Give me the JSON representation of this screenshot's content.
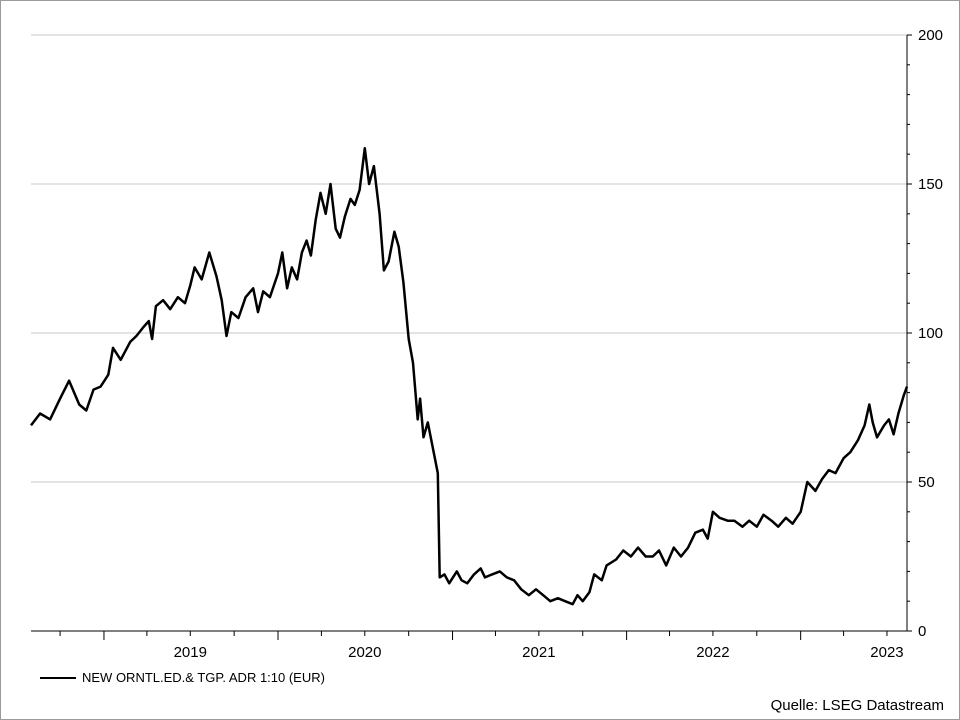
{
  "chart_data": {
    "type": "line",
    "source": "Quelle: LSEG Datastream",
    "y_axis": {
      "position": "right",
      "ylim": [
        0,
        200
      ],
      "ticks": [
        "0",
        "50",
        "100",
        "150",
        "200"
      ]
    },
    "x_axis": {
      "labels": [
        "2019",
        "2020",
        "2021",
        "2022",
        "2023"
      ]
    },
    "grid": true,
    "legend_position": "bottom-left",
    "series": [
      {
        "name": "NEW ORNTL.ED.& TGP. ADR 1:10 (EUR)",
        "color": "#000000",
        "points": [
          [
            "2018-08-01",
            69
          ],
          [
            "2018-08-20",
            73
          ],
          [
            "2018-09-10",
            71
          ],
          [
            "2018-10-01",
            78
          ],
          [
            "2018-10-20",
            84
          ],
          [
            "2018-11-10",
            76
          ],
          [
            "2018-11-25",
            74
          ],
          [
            "2018-12-10",
            81
          ],
          [
            "2018-12-25",
            82
          ],
          [
            "2019-01-10",
            86
          ],
          [
            "2019-01-20",
            95
          ],
          [
            "2019-02-05",
            91
          ],
          [
            "2019-02-25",
            97
          ],
          [
            "2019-03-10",
            99
          ],
          [
            "2019-03-25",
            102
          ],
          [
            "2019-04-05",
            104
          ],
          [
            "2019-04-12",
            98
          ],
          [
            "2019-04-20",
            109
          ],
          [
            "2019-05-05",
            111
          ],
          [
            "2019-05-20",
            108
          ],
          [
            "2019-06-05",
            112
          ],
          [
            "2019-06-20",
            110
          ],
          [
            "2019-07-01",
            116
          ],
          [
            "2019-07-10",
            122
          ],
          [
            "2019-07-25",
            118
          ],
          [
            "2019-08-10",
            127
          ],
          [
            "2019-08-25",
            119
          ],
          [
            "2019-09-05",
            111
          ],
          [
            "2019-09-15",
            99
          ],
          [
            "2019-09-25",
            107
          ],
          [
            "2019-10-10",
            105
          ],
          [
            "2019-10-25",
            112
          ],
          [
            "2019-11-10",
            115
          ],
          [
            "2019-11-20",
            107
          ],
          [
            "2019-12-01",
            114
          ],
          [
            "2019-12-15",
            112
          ],
          [
            "2020-01-01",
            120
          ],
          [
            "2020-01-10",
            127
          ],
          [
            "2020-01-20",
            115
          ],
          [
            "2020-01-30",
            122
          ],
          [
            "2020-02-10",
            118
          ],
          [
            "2020-02-20",
            127
          ],
          [
            "2020-03-01",
            131
          ],
          [
            "2020-03-10",
            126
          ],
          [
            "2020-03-20",
            138
          ],
          [
            "2020-03-30",
            147
          ],
          [
            "2020-04-10",
            140
          ],
          [
            "2020-04-20",
            150
          ],
          [
            "2020-05-01",
            135
          ],
          [
            "2020-05-10",
            132
          ],
          [
            "2020-05-20",
            139
          ],
          [
            "2020-06-01",
            145
          ],
          [
            "2020-06-10",
            143
          ],
          [
            "2020-06-20",
            148
          ],
          [
            "2020-07-01",
            162
          ],
          [
            "2020-07-10",
            150
          ],
          [
            "2020-07-20",
            156
          ],
          [
            "2020-08-01",
            140
          ],
          [
            "2020-08-10",
            121
          ],
          [
            "2020-08-20",
            124
          ],
          [
            "2020-09-01",
            134
          ],
          [
            "2020-09-10",
            129
          ],
          [
            "2020-09-20",
            117
          ],
          [
            "2020-10-01",
            98
          ],
          [
            "2020-10-10",
            90
          ],
          [
            "2020-10-20",
            71
          ],
          [
            "2020-10-25",
            78
          ],
          [
            "2020-11-01",
            65
          ],
          [
            "2020-11-10",
            70
          ],
          [
            "2020-11-20",
            62
          ],
          [
            "2020-12-01",
            53
          ],
          [
            "2020-12-05",
            18
          ],
          [
            "2020-12-15",
            19
          ],
          [
            "2020-12-25",
            16
          ],
          [
            "2021-01-10",
            20
          ],
          [
            "2021-01-20",
            17
          ],
          [
            "2021-02-01",
            16
          ],
          [
            "2021-02-15",
            19
          ],
          [
            "2021-03-01",
            21
          ],
          [
            "2021-03-10",
            18
          ],
          [
            "2021-03-25",
            19
          ],
          [
            "2021-04-10",
            20
          ],
          [
            "2021-04-25",
            18
          ],
          [
            "2021-05-10",
            17
          ],
          [
            "2021-05-25",
            14
          ],
          [
            "2021-06-10",
            12
          ],
          [
            "2021-06-25",
            14
          ],
          [
            "2021-07-10",
            12
          ],
          [
            "2021-07-25",
            10
          ],
          [
            "2021-08-10",
            11
          ],
          [
            "2021-08-25",
            10
          ],
          [
            "2021-09-10",
            9
          ],
          [
            "2021-09-20",
            12
          ],
          [
            "2021-10-01",
            10
          ],
          [
            "2021-10-15",
            13
          ],
          [
            "2021-10-25",
            19
          ],
          [
            "2021-11-10",
            17
          ],
          [
            "2021-11-20",
            22
          ],
          [
            "2021-12-10",
            24
          ],
          [
            "2021-12-25",
            27
          ],
          [
            "2022-01-10",
            25
          ],
          [
            "2022-01-25",
            28
          ],
          [
            "2022-02-10",
            25
          ],
          [
            "2022-02-25",
            25
          ],
          [
            "2022-03-10",
            27
          ],
          [
            "2022-03-25",
            22
          ],
          [
            "2022-04-10",
            28
          ],
          [
            "2022-04-25",
            25
          ],
          [
            "2022-05-10",
            28
          ],
          [
            "2022-05-25",
            33
          ],
          [
            "2022-06-10",
            34
          ],
          [
            "2022-06-20",
            31
          ],
          [
            "2022-07-01",
            40
          ],
          [
            "2022-07-15",
            38
          ],
          [
            "2022-08-01",
            37
          ],
          [
            "2022-08-15",
            37
          ],
          [
            "2022-09-01",
            35
          ],
          [
            "2022-09-15",
            37
          ],
          [
            "2022-10-01",
            35
          ],
          [
            "2022-10-15",
            39
          ],
          [
            "2022-11-01",
            37
          ],
          [
            "2022-11-15",
            35
          ],
          [
            "2022-12-01",
            38
          ],
          [
            "2022-12-15",
            36
          ],
          [
            "2023-01-01",
            40
          ],
          [
            "2023-01-15",
            50
          ],
          [
            "2023-02-01",
            47
          ],
          [
            "2023-02-15",
            51
          ],
          [
            "2023-03-01",
            54
          ],
          [
            "2023-03-15",
            53
          ],
          [
            "2023-04-01",
            58
          ],
          [
            "2023-04-15",
            60
          ],
          [
            "2023-05-01",
            64
          ],
          [
            "2023-05-15",
            69
          ],
          [
            "2023-05-25",
            76
          ],
          [
            "2023-06-01",
            70
          ],
          [
            "2023-06-10",
            65
          ],
          [
            "2023-06-25",
            69
          ],
          [
            "2023-07-05",
            71
          ],
          [
            "2023-07-15",
            66
          ],
          [
            "2023-07-25",
            73
          ],
          [
            "2023-08-05",
            79
          ],
          [
            "2023-08-12",
            82
          ]
        ]
      }
    ]
  }
}
